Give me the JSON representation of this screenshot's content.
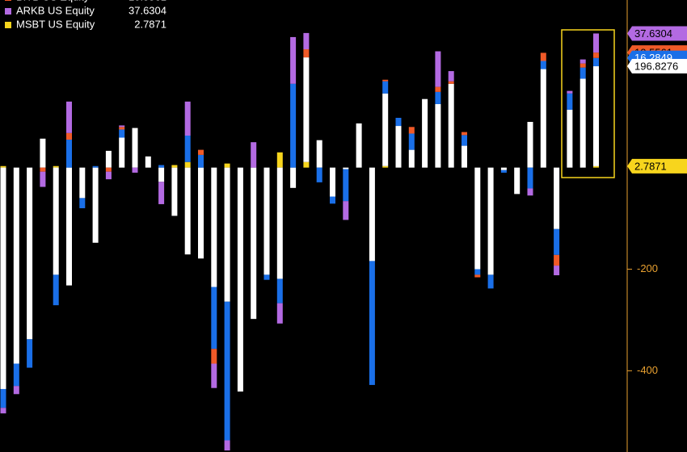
{
  "chart_data": {
    "type": "stacked-bar",
    "ylim": [
      -560,
      330
    ],
    "yticks": [
      -400,
      -200
    ],
    "series": [
      {
        "color": "#ffffff",
        "values": [
          -436,
          -386,
          -338,
          57,
          -211,
          -232,
          -60,
          -148,
          33,
          59,
          78,
          22,
          -28,
          -95,
          -171,
          -179,
          -235,
          -264,
          -441,
          -298,
          -211,
          -219,
          -40,
          206,
          54,
          -57,
          -3,
          87,
          -184,
          143,
          82,
          35,
          135,
          125,
          165,
          43,
          -200,
          -211,
          -5,
          -52,
          90,
          194,
          -121,
          114,
          175,
          196.8276
        ]
      },
      {
        "color": "#1a6fe8",
        "values": [
          -37,
          -44,
          -56,
          0,
          -60,
          55,
          -20,
          3,
          0,
          16,
          0,
          0,
          5,
          0,
          52,
          25,
          -122,
          -273,
          0,
          0,
          -10,
          -48,
          165,
          0,
          -29,
          -14,
          -63,
          0,
          -244,
          24,
          16,
          32,
          0,
          24,
          0,
          21,
          -11,
          -27,
          -5,
          0,
          -41,
          16,
          -51,
          32,
          22,
          16.2849
        ]
      },
      {
        "name": "BITB US Equity",
        "color": "#f05a28",
        "values": [
          0,
          0,
          0,
          -8,
          0,
          13,
          0,
          0,
          -8,
          5,
          0,
          0,
          0,
          0,
          0,
          10,
          -29,
          0,
          0,
          0,
          0,
          0,
          0,
          16,
          0,
          0,
          0,
          0,
          0,
          3,
          0,
          13,
          0,
          10,
          5,
          6,
          -5,
          0,
          0,
          0,
          0,
          16,
          -21,
          0,
          8,
          10.5561
        ]
      },
      {
        "name": "ARKB US Equity",
        "color": "#b36ae2",
        "values": [
          -11,
          -16,
          0,
          -30,
          0,
          62,
          0,
          0,
          -15,
          3,
          -10,
          0,
          -44,
          0,
          67,
          0,
          -48,
          -20,
          0,
          50,
          0,
          -40,
          92,
          32,
          0,
          0,
          -37,
          0,
          0,
          0,
          0,
          0,
          0,
          70,
          20,
          0,
          0,
          0,
          0,
          0,
          -14,
          0,
          -19,
          5,
          8,
          37.6304
        ]
      },
      {
        "name": "MSBT US Equity",
        "color": "#f7d51d",
        "values": [
          3,
          0,
          0,
          0,
          3,
          0,
          0,
          0,
          0,
          0,
          0,
          0,
          0,
          5,
          11,
          0,
          0,
          8,
          0,
          0,
          0,
          30,
          0,
          11,
          0,
          0,
          0,
          0,
          0,
          3,
          0,
          0,
          0,
          0,
          0,
          0,
          0,
          0,
          0,
          0,
          0,
          0,
          0,
          0,
          0,
          2.7871
        ]
      }
    ]
  }
}
